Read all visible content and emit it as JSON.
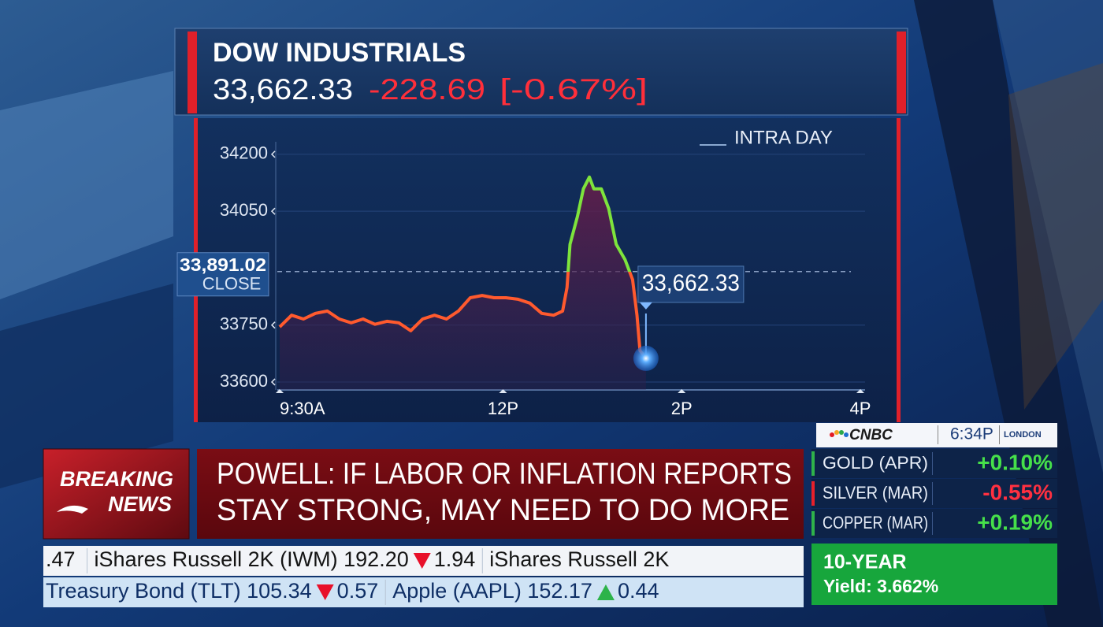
{
  "header": {
    "title": "DOW INDUSTRIALS",
    "price": "33,662.33",
    "change": "-228.69",
    "percent": "[-0.67%]"
  },
  "chart_data": {
    "type": "line",
    "label": "INTRA DAY",
    "x": [
      570,
      578,
      586,
      594,
      602,
      610,
      618,
      626,
      634,
      642,
      650,
      658,
      666,
      674,
      682,
      690,
      698,
      706,
      714,
      722,
      730,
      738,
      746,
      754,
      760,
      763,
      765,
      770,
      774,
      778,
      781,
      786,
      791,
      796,
      802,
      807,
      810,
      812,
      816
    ],
    "series": [
      {
        "values": [
          33745,
          33776,
          33766,
          33781,
          33787,
          33766,
          33756,
          33766,
          33752,
          33760,
          33756,
          33735,
          33766,
          33776,
          33766,
          33787,
          33822,
          33828,
          33822,
          33822,
          33818,
          33808,
          33781,
          33776,
          33787,
          33849,
          33963,
          34036,
          34109,
          34140,
          34109,
          34109,
          34057,
          33963,
          33922,
          33870,
          33776,
          33683,
          33662.33
        ],
        "color": "#ff5a2e",
        "above_color": "#7ee43c"
      }
    ],
    "xlim": [
      570,
      960
    ],
    "xticks": [
      {
        "value": 570,
        "label": "9:30A"
      },
      {
        "value": 720,
        "label": "12P"
      },
      {
        "value": 840,
        "label": "2P"
      },
      {
        "value": 960,
        "label": "4P"
      }
    ],
    "ylim": [
      33580,
      34260
    ],
    "yticks": [
      33600,
      33750,
      34050,
      34200
    ],
    "reference": {
      "value": 33891.02,
      "label": "33,891.02",
      "name": "CLOSE"
    },
    "last_label": "33,662.33"
  },
  "breaking": {
    "line1": "BREAKING",
    "line2": "NEWS"
  },
  "headline": [
    "POWELL: IF LABOR OR INFLATION REPORTS",
    "STAY STRONG, MAY NEED TO DO MORE"
  ],
  "ticker": {
    "rows": [
      [
        {
          "name": ".47"
        },
        {
          "name": "iShares Russell 2K (IWM)",
          "price": "192.20",
          "dir": "down",
          "change": "1.94"
        },
        {
          "name": "iShares Russell 2K"
        }
      ],
      [
        {
          "name": "Treasury Bond (TLT)",
          "price": "105.34",
          "dir": "down",
          "change": "0.57"
        },
        {
          "name": "Apple (AAPL)",
          "price": "152.17",
          "dir": "up",
          "change": "0.44"
        }
      ]
    ]
  },
  "sidebar": {
    "logo": "CNBC",
    "time": "6:34P",
    "city": "LONDON",
    "rows": [
      {
        "name": "GOLD (APR)",
        "change": "+0.10%"
      },
      {
        "name": "SILVER (MAR)",
        "change": "-0.55%"
      },
      {
        "name": "COPPER (MAR)",
        "change": "+0.19%"
      }
    ],
    "bond": {
      "title": "10-YEAR",
      "yield": "Yield: 3.662%"
    }
  }
}
